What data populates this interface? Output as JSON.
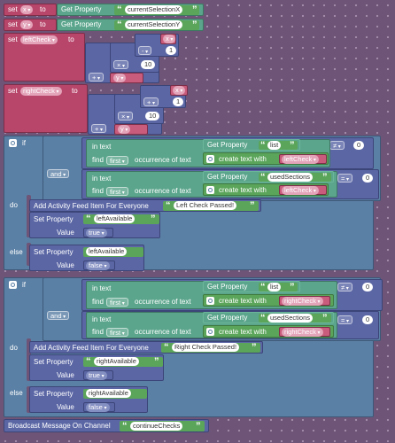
{
  "kw": {
    "set": "set",
    "to": "to",
    "get_property": "Get Property",
    "if": "if",
    "do": "do",
    "else": "else",
    "and": "and",
    "in_text": "in text",
    "find": "find",
    "occurrence": "occurrence of text",
    "create_text": "create text with",
    "first": "first",
    "feed": "Add Activity Feed Item For Everyone",
    "set_property": "Set Property",
    "value": "Value",
    "broadcast": "Broadcast Message On Channel"
  },
  "vars": {
    "x": "x",
    "y": "y",
    "left": "leftCheck",
    "right": "rightCheck"
  },
  "props": {
    "sel_x": "currentSelectionX",
    "sel_y": "currentSelectionY",
    "list": "list",
    "used": "usedSections",
    "left_avail": "leftAvailable",
    "right_avail": "rightAvailable"
  },
  "ops": {
    "minus": "-",
    "times": "×",
    "plus": "+",
    "neq": "≠",
    "eq": "="
  },
  "nums": {
    "one": "1",
    "ten": "10",
    "zero": "0"
  },
  "msgs": {
    "left": "Left Check Passed!",
    "right": "Right Check Passed!",
    "channel": "continueChecks"
  },
  "bools": {
    "true": "true",
    "false": "false"
  }
}
